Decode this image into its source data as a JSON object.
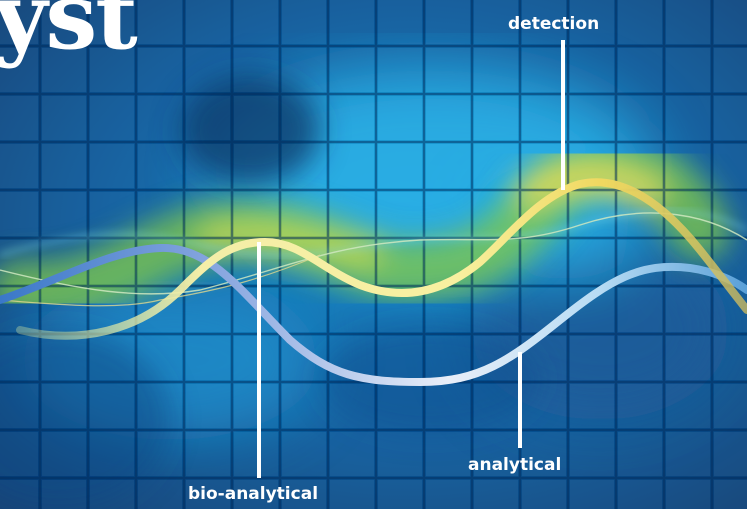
{
  "masthead": {
    "visible_text": "yst"
  },
  "callouts": {
    "detection": "detection",
    "analytical": "analytical",
    "bio_analytical": "bio-analytical"
  },
  "colors": {
    "background_dark": "#0a3a70",
    "background_mid": "#0a7fc2",
    "glow_cyan": "#1ec1f0",
    "glow_green": "#8cc83c",
    "glow_yellow": "#e6dc50",
    "curve_yellow": "#f5f0a0",
    "curve_blue": "#9cc8f0",
    "curve_thin": "#7ad6f0",
    "text": "#ffffff"
  }
}
